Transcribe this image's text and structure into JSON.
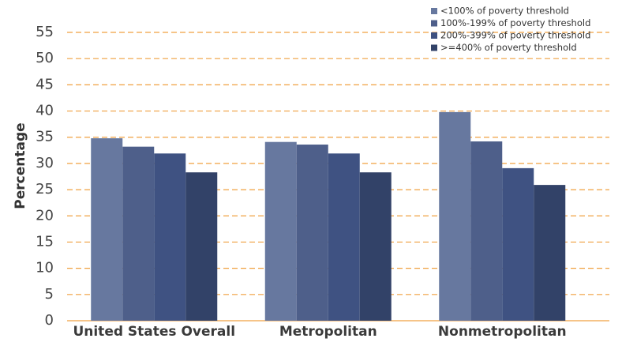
{
  "chart_data": {
    "type": "bar",
    "y_label": "Percentage",
    "categories": [
      "United States Overall",
      "Metropolitan",
      "Nonmetropolitan"
    ],
    "series": [
      {
        "name": "<100% of poverty threshold",
        "color": "#67789f",
        "values": [
          34.8,
          34.1,
          39.8
        ]
      },
      {
        "name": "100%-199% of poverty threshold",
        "color": "#4e5f8a",
        "values": [
          33.2,
          33.6,
          34.2
        ]
      },
      {
        "name": "200%-399% of poverty threshold",
        "color": "#3f5282",
        "values": [
          31.9,
          31.9,
          29.1
        ]
      },
      {
        "name": ">=400% of poverty threshold",
        "color": "#324268",
        "values": [
          28.3,
          28.3,
          25.9
        ]
      }
    ],
    "ylim": [
      0,
      55
    ],
    "yticks": [
      0,
      5,
      10,
      15,
      20,
      25,
      30,
      35,
      40,
      45,
      50,
      55
    ],
    "grid": true,
    "legend": "top-right"
  }
}
